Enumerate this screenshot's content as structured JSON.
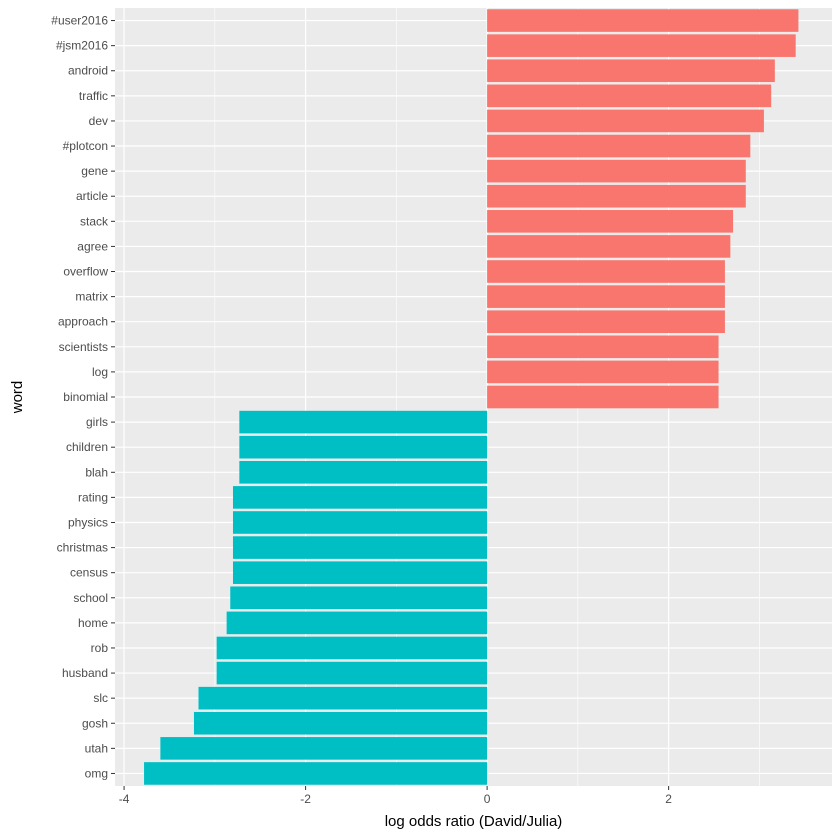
{
  "chart_data": {
    "type": "bar",
    "orientation": "horizontal",
    "xlabel": "log odds ratio (David/Julia)",
    "ylabel": "word",
    "xlim": [
      -4.1,
      3.8
    ],
    "x_ticks": [
      -4,
      -2,
      0,
      2
    ],
    "x_tick_labels": [
      "-4",
      "-2",
      "0",
      "2"
    ],
    "grid": true,
    "legend": "none",
    "colors": {
      "positive": "#F8766D",
      "negative": "#00BFC4",
      "panel": "#EBEBEB",
      "grid": "#FFFFFF"
    },
    "categories": [
      "#user2016",
      "#jsm2016",
      "android",
      "traffic",
      "dev",
      "#plotcon",
      "gene",
      "article",
      "stack",
      "agree",
      "overflow",
      "matrix",
      "approach",
      "scientists",
      "log",
      "binomial",
      "girls",
      "children",
      "blah",
      "rating",
      "physics",
      "christmas",
      "census",
      "school",
      "home",
      "rob",
      "husband",
      "slc",
      "gosh",
      "utah",
      "omg"
    ],
    "values": [
      3.43,
      3.4,
      3.17,
      3.13,
      3.05,
      2.9,
      2.85,
      2.85,
      2.71,
      2.68,
      2.62,
      2.62,
      2.62,
      2.55,
      2.55,
      2.55,
      -2.73,
      -2.73,
      -2.73,
      -2.8,
      -2.8,
      -2.8,
      -2.8,
      -2.83,
      -2.87,
      -2.98,
      -2.98,
      -3.18,
      -3.23,
      -3.6,
      -3.78
    ]
  }
}
